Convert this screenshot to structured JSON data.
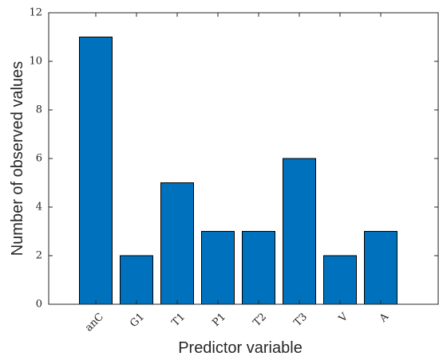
{
  "chart_data": {
    "type": "bar",
    "title": "",
    "xlabel": "Predictor variable",
    "ylabel": "Number of observed values",
    "categories": [
      "anC",
      "G1",
      "T1",
      "P1",
      "T2",
      "T3",
      "V",
      "A"
    ],
    "values": [
      11,
      2,
      5,
      3,
      3,
      6,
      2,
      3
    ],
    "ylim": [
      0,
      12
    ],
    "yticks": [
      0,
      2,
      4,
      6,
      8,
      10,
      12
    ],
    "ytick_labels": [
      "0",
      "2",
      "4",
      "6",
      "8",
      "10",
      "12"
    ],
    "grid": false,
    "legend": "none",
    "bar_color": "#0072BD",
    "edge_color": "#000000"
  }
}
